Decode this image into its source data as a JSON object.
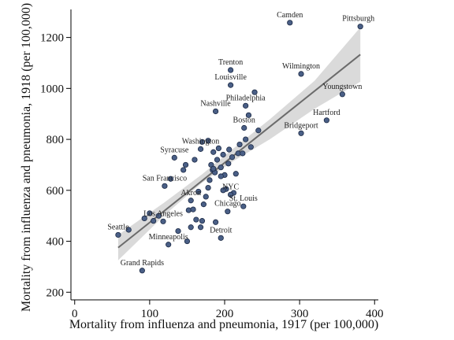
{
  "chart_data": {
    "type": "scatter",
    "title": "",
    "xlabel": "Mortality from influenza and pneumonia, 1917 (per 100,000)",
    "ylabel": "Mortality from influenza and pneumonia, 1918 (per 100,000)",
    "xlim": [
      -5,
      405
    ],
    "ylim": [
      170,
      1310
    ],
    "xticks": [
      0,
      100,
      200,
      300,
      400
    ],
    "yticks": [
      200,
      400,
      600,
      800,
      1000,
      1200
    ],
    "grid": false,
    "legend": "none",
    "colors": {
      "point_fill": "#4a5f86",
      "point_edge": "#1c2a45",
      "fit_line": "#6b6b6b",
      "ci_band": "#dadada"
    },
    "fit_line": {
      "x": [
        58,
        381
      ],
      "y": [
        375,
        1133
      ]
    },
    "ci_band": {
      "x": [
        58,
        120,
        170,
        210,
        260,
        320,
        381
      ],
      "lower": [
        325,
        503,
        630,
        712,
        800,
        920,
        1026
      ],
      "upper": [
        425,
        553,
        663,
        760,
        878,
        1030,
        1240
      ]
    },
    "labeled_points": [
      {
        "label": "Camden",
        "x": 287,
        "y": 1258
      },
      {
        "label": "Pittsburgh",
        "x": 381,
        "y": 1243
      },
      {
        "label": "Trenton",
        "x": 208,
        "y": 1072
      },
      {
        "label": "Wilmington",
        "x": 302,
        "y": 1057
      },
      {
        "label": "Louisville",
        "x": 208,
        "y": 1013
      },
      {
        "label": "Philadelphia",
        "x": 228,
        "y": 932
      },
      {
        "label": "Nashville",
        "x": 188,
        "y": 910
      },
      {
        "label": "Youngstown",
        "x": 357,
        "y": 977
      },
      {
        "label": "Boston",
        "x": 226,
        "y": 845
      },
      {
        "label": "Hartford",
        "x": 336,
        "y": 875
      },
      {
        "label": "Bridgeport",
        "x": 302,
        "y": 824
      },
      {
        "label": "Washington",
        "x": 168,
        "y": 762
      },
      {
        "label": "Syracuse",
        "x": 133,
        "y": 728
      },
      {
        "label": "San Francisco",
        "x": 120,
        "y": 617
      },
      {
        "label": "NYC",
        "x": 208,
        "y": 583
      },
      {
        "label": "Akron",
        "x": 155,
        "y": 560
      },
      {
        "label": "St. Louis",
        "x": 225,
        "y": 537
      },
      {
        "label": "Chicago",
        "x": 204,
        "y": 517
      },
      {
        "label": "Los Angeles",
        "x": 118,
        "y": 478
      },
      {
        "label": "Seattle",
        "x": 58,
        "y": 425
      },
      {
        "label": "Detroit",
        "x": 195,
        "y": 413
      },
      {
        "label": "Minneapolis",
        "x": 125,
        "y": 387
      },
      {
        "label": "Grand Rapids",
        "x": 90,
        "y": 285
      }
    ],
    "other_points": [
      {
        "x": 72,
        "y": 445
      },
      {
        "x": 93,
        "y": 490
      },
      {
        "x": 100,
        "y": 510
      },
      {
        "x": 105,
        "y": 480
      },
      {
        "x": 112,
        "y": 500
      },
      {
        "x": 128,
        "y": 645
      },
      {
        "x": 150,
        "y": 400
      },
      {
        "x": 155,
        "y": 455
      },
      {
        "x": 152,
        "y": 522
      },
      {
        "x": 158,
        "y": 525
      },
      {
        "x": 162,
        "y": 485
      },
      {
        "x": 165,
        "y": 595
      },
      {
        "x": 168,
        "y": 455
      },
      {
        "x": 170,
        "y": 480
      },
      {
        "x": 172,
        "y": 545
      },
      {
        "x": 175,
        "y": 575
      },
      {
        "x": 178,
        "y": 610
      },
      {
        "x": 180,
        "y": 640
      },
      {
        "x": 182,
        "y": 700
      },
      {
        "x": 184,
        "y": 680
      },
      {
        "x": 185,
        "y": 750
      },
      {
        "x": 187,
        "y": 670
      },
      {
        "x": 188,
        "y": 475
      },
      {
        "x": 190,
        "y": 720
      },
      {
        "x": 192,
        "y": 765
      },
      {
        "x": 195,
        "y": 690
      },
      {
        "x": 198,
        "y": 740
      },
      {
        "x": 200,
        "y": 660
      },
      {
        "x": 202,
        "y": 605
      },
      {
        "x": 205,
        "y": 705
      },
      {
        "x": 206,
        "y": 760
      },
      {
        "x": 210,
        "y": 730
      },
      {
        "x": 212,
        "y": 590
      },
      {
        "x": 215,
        "y": 665
      },
      {
        "x": 218,
        "y": 745
      },
      {
        "x": 220,
        "y": 780
      },
      {
        "x": 224,
        "y": 745
      },
      {
        "x": 228,
        "y": 800
      },
      {
        "x": 232,
        "y": 895
      },
      {
        "x": 235,
        "y": 770
      },
      {
        "x": 240,
        "y": 985
      },
      {
        "x": 245,
        "y": 835
      },
      {
        "x": 145,
        "y": 680
      },
      {
        "x": 148,
        "y": 700
      },
      {
        "x": 160,
        "y": 720
      },
      {
        "x": 170,
        "y": 790
      },
      {
        "x": 178,
        "y": 795
      },
      {
        "x": 185,
        "y": 685
      },
      {
        "x": 195,
        "y": 655
      },
      {
        "x": 138,
        "y": 440
      },
      {
        "x": 198,
        "y": 600
      }
    ]
  }
}
